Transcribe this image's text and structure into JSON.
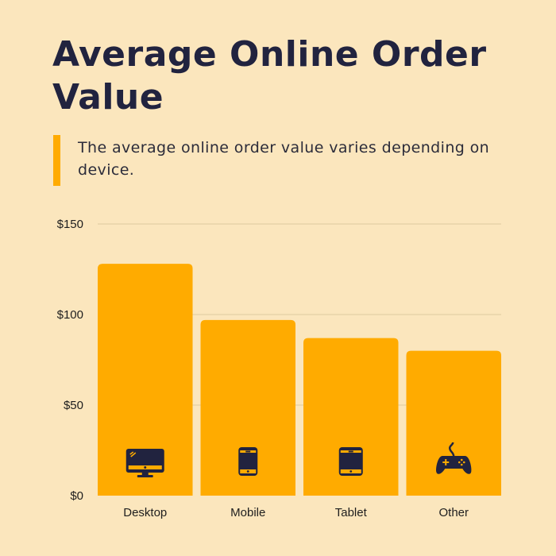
{
  "header": {
    "title": "Average Online Order Value",
    "subtitle": "The average online order value varies depending on device."
  },
  "colors": {
    "background": "#fbe6bd",
    "bar": "#ffab00",
    "title": "#21233f",
    "icon": "#21233f",
    "grid": "#e2cfa6"
  },
  "chart_data": {
    "type": "bar",
    "title": "Average Online Order Value",
    "subtitle": "The average online order value varies depending on device.",
    "categories": [
      "Desktop",
      "Mobile",
      "Tablet",
      "Other"
    ],
    "values": [
      128,
      97,
      87,
      80
    ],
    "icons": [
      "desktop-monitor-icon",
      "smartphone-icon",
      "tablet-icon",
      "gamepad-icon"
    ],
    "ylim": [
      0,
      150
    ],
    "yticks": [
      0,
      50,
      100,
      150
    ],
    "ytick_labels": [
      "$0",
      "$50",
      "$100",
      "$150"
    ],
    "grid": true,
    "legend": "none",
    "xlabel": "",
    "ylabel": ""
  }
}
